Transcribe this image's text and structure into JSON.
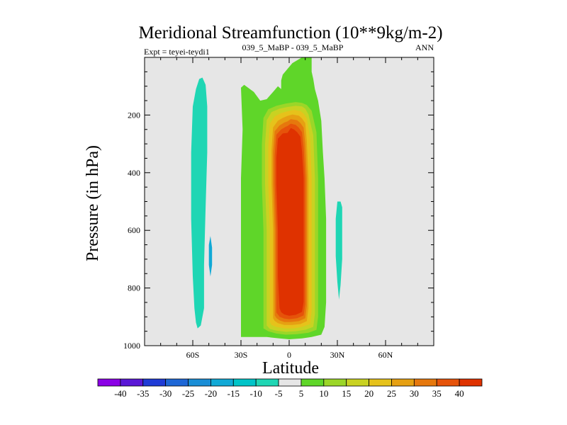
{
  "chart_data": {
    "type": "filled-contour",
    "title": "Meridional Streamfunction (10**9kg/m-2)",
    "left_subtitle": "Expt = teyei-teydi1",
    "center_subtitle": "039_5_MaBP - 039_5_MaBP",
    "right_subtitle": "ANN",
    "xlabel": "Latitude",
    "ylabel": "Pressure (in hPa)",
    "xlim": [
      -90,
      90
    ],
    "ylim": [
      1000,
      0
    ],
    "x_ticks": [
      {
        "value": -60,
        "label": "60S"
      },
      {
        "value": -30,
        "label": "30S"
      },
      {
        "value": 0,
        "label": "0"
      },
      {
        "value": 30,
        "label": "30N"
      },
      {
        "value": 60,
        "label": "60N"
      }
    ],
    "y_ticks": [
      {
        "value": 200,
        "label": "200"
      },
      {
        "value": 400,
        "label": "400"
      },
      {
        "value": 600,
        "label": "600"
      },
      {
        "value": 800,
        "label": "800"
      },
      {
        "value": 1000,
        "label": "1000"
      }
    ],
    "background_color": "#e6e6e6",
    "colorbar": {
      "labels": [
        "-40",
        "-35",
        "-30",
        "-25",
        "-20",
        "-15",
        "-10",
        "-5",
        "5",
        "10",
        "15",
        "20",
        "25",
        "30",
        "35",
        "40"
      ],
      "colors": [
        "#8b00e6",
        "#5a17d6",
        "#1f3bd6",
        "#1e67d6",
        "#1a8ed6",
        "#11a9d6",
        "#00c4c8",
        "#1fd6b4",
        "#e6e6e6",
        "#5fd629",
        "#9bd628",
        "#c9d222",
        "#e6c21b",
        "#e6a012",
        "#e6780d",
        "#e6530a",
        "#df3200"
      ]
    },
    "regions": [
      {
        "name": "southern-negative-cell",
        "color": "#1fd6b4",
        "points": [
          [
            -57,
            940
          ],
          [
            -55,
            930
          ],
          [
            -53,
            870
          ],
          [
            -53,
            720
          ],
          [
            -52,
            520
          ],
          [
            -51,
            330
          ],
          [
            -51,
            170
          ],
          [
            -52,
            95
          ],
          [
            -54,
            70
          ],
          [
            -56,
            75
          ],
          [
            -58,
            110
          ],
          [
            -60,
            170
          ],
          [
            -61,
            330
          ],
          [
            -61,
            560
          ],
          [
            -60,
            760
          ],
          [
            -59,
            870
          ],
          [
            -58,
            920
          ]
        ]
      },
      {
        "name": "southern-negative-core",
        "color": "#11a9d6",
        "points": [
          [
            -49,
            620
          ],
          [
            -48,
            660
          ],
          [
            -48,
            720
          ],
          [
            -49,
            760
          ],
          [
            -50,
            720
          ],
          [
            -50,
            650
          ]
        ]
      },
      {
        "name": "northern-negative-cell",
        "color": "#1fd6b4",
        "points": [
          [
            31,
            840
          ],
          [
            32,
            790
          ],
          [
            33,
            700
          ],
          [
            33,
            600
          ],
          [
            33,
            520
          ],
          [
            32,
            500
          ],
          [
            30,
            500
          ],
          [
            29,
            560
          ],
          [
            29,
            690
          ],
          [
            30,
            780
          ]
        ]
      },
      {
        "name": "positive-5",
        "color": "#5fd629",
        "points": [
          [
            -30,
            970
          ],
          [
            -30,
            780
          ],
          [
            -30,
            600
          ],
          [
            -30,
            420
          ],
          [
            -29,
            250
          ],
          [
            -30,
            105
          ],
          [
            -28,
            95
          ],
          [
            -22,
            120
          ],
          [
            -18,
            150
          ],
          [
            -14,
            145
          ],
          [
            -10,
            120
          ],
          [
            -7,
            100
          ],
          [
            -5,
            110
          ],
          [
            -5,
            80
          ],
          [
            -4,
            60
          ],
          [
            2,
            20
          ],
          [
            8,
            0
          ],
          [
            14,
            0
          ],
          [
            14,
            50
          ],
          [
            15,
            75
          ],
          [
            16,
            110
          ],
          [
            18,
            150
          ],
          [
            20,
            220
          ],
          [
            21,
            330
          ],
          [
            22,
            420
          ],
          [
            23,
            560
          ],
          [
            23,
            720
          ],
          [
            23,
            850
          ],
          [
            22,
            935
          ],
          [
            20,
            962
          ],
          [
            14,
            970
          ],
          [
            8,
            975
          ],
          [
            0,
            978
          ],
          [
            -6,
            975
          ],
          [
            -14,
            970
          ],
          [
            -22,
            970
          ]
        ]
      },
      {
        "name": "positive-10",
        "color": "#9bd628",
        "points": [
          [
            -16,
            940
          ],
          [
            -16,
            760
          ],
          [
            -16,
            600
          ],
          [
            -17,
            440
          ],
          [
            -17,
            300
          ],
          [
            -16,
            210
          ],
          [
            -13,
            180
          ],
          [
            -8,
            168
          ],
          [
            -2,
            160
          ],
          [
            4,
            155
          ],
          [
            8,
            158
          ],
          [
            11,
            165
          ],
          [
            14,
            185
          ],
          [
            17,
            260
          ],
          [
            18,
            420
          ],
          [
            18,
            600
          ],
          [
            18,
            780
          ],
          [
            18,
            900
          ],
          [
            17,
            945
          ],
          [
            12,
            955
          ],
          [
            5,
            960
          ],
          [
            -2,
            962
          ],
          [
            -8,
            958
          ],
          [
            -13,
            950
          ]
        ]
      },
      {
        "name": "positive-15",
        "color": "#c9d222",
        "points": [
          [
            -14,
            930
          ],
          [
            -14,
            760
          ],
          [
            -14,
            600
          ],
          [
            -15,
            440
          ],
          [
            -15,
            300
          ],
          [
            -14,
            218
          ],
          [
            -11,
            190
          ],
          [
            -6,
            178
          ],
          [
            -1,
            172
          ],
          [
            4,
            168
          ],
          [
            8,
            170
          ],
          [
            10,
            178
          ],
          [
            12,
            198
          ],
          [
            15,
            270
          ],
          [
            16,
            420
          ],
          [
            16,
            600
          ],
          [
            16,
            780
          ],
          [
            16,
            890
          ],
          [
            15,
            935
          ],
          [
            10,
            945
          ],
          [
            4,
            950
          ],
          [
            -2,
            952
          ],
          [
            -8,
            948
          ],
          [
            -12,
            942
          ]
        ]
      },
      {
        "name": "positive-20",
        "color": "#e6c21b",
        "points": [
          [
            -12,
            918
          ],
          [
            -12,
            760
          ],
          [
            -12,
            600
          ],
          [
            -13,
            440
          ],
          [
            -13,
            310
          ],
          [
            -12,
            230
          ],
          [
            -9,
            205
          ],
          [
            -5,
            193
          ],
          [
            -1,
            187
          ],
          [
            3,
            182
          ],
          [
            7,
            186
          ],
          [
            9,
            195
          ],
          [
            11,
            212
          ],
          [
            13,
            280
          ],
          [
            14,
            420
          ],
          [
            14,
            600
          ],
          [
            14,
            770
          ],
          [
            14,
            880
          ],
          [
            13,
            925
          ],
          [
            8,
            935
          ],
          [
            3,
            940
          ],
          [
            -3,
            940
          ],
          [
            -8,
            935
          ],
          [
            -11,
            928
          ]
        ]
      },
      {
        "name": "positive-25",
        "color": "#e6a012",
        "points": [
          [
            -10,
            905
          ],
          [
            -10,
            760
          ],
          [
            -10,
            600
          ],
          [
            -11,
            440
          ],
          [
            -11,
            320
          ],
          [
            -10,
            243
          ],
          [
            -7,
            220
          ],
          [
            -4,
            210
          ],
          [
            -1,
            203
          ],
          [
            2,
            198
          ],
          [
            6,
            202
          ],
          [
            8,
            212
          ],
          [
            10,
            228
          ],
          [
            11,
            290
          ],
          [
            12,
            420
          ],
          [
            12,
            600
          ],
          [
            12,
            760
          ],
          [
            12,
            870
          ],
          [
            11,
            915
          ],
          [
            7,
            925
          ],
          [
            2,
            928
          ],
          [
            -3,
            928
          ],
          [
            -7,
            922
          ],
          [
            -9,
            914
          ]
        ]
      },
      {
        "name": "positive-30",
        "color": "#e6780d",
        "points": [
          [
            -9,
            895
          ],
          [
            -9,
            760
          ],
          [
            -9,
            600
          ],
          [
            -10,
            440
          ],
          [
            -10,
            330
          ],
          [
            -9,
            256
          ],
          [
            -6,
            236
          ],
          [
            -3,
            226
          ],
          [
            -1,
            222
          ],
          [
            1,
            214
          ],
          [
            5,
            218
          ],
          [
            7,
            228
          ],
          [
            9,
            244
          ],
          [
            10,
            300
          ],
          [
            11,
            420
          ],
          [
            11,
            600
          ],
          [
            11,
            760
          ],
          [
            11,
            862
          ],
          [
            10,
            905
          ],
          [
            6,
            915
          ],
          [
            1,
            918
          ],
          [
            -3,
            918
          ],
          [
            -6,
            912
          ],
          [
            -8,
            904
          ]
        ]
      },
      {
        "name": "positive-35",
        "color": "#e6530a",
        "points": [
          [
            -8,
            885
          ],
          [
            -8,
            760
          ],
          [
            -8,
            600
          ],
          [
            -9,
            440
          ],
          [
            -9,
            340
          ],
          [
            -8,
            268
          ],
          [
            -5,
            250
          ],
          [
            -2,
            240
          ],
          [
            -1,
            238
          ],
          [
            1,
            230
          ],
          [
            4,
            234
          ],
          [
            6,
            244
          ],
          [
            8,
            260
          ],
          [
            9,
            312
          ],
          [
            10,
            420
          ],
          [
            10,
            600
          ],
          [
            10,
            760
          ],
          [
            10,
            855
          ],
          [
            9,
            895
          ],
          [
            5,
            905
          ],
          [
            0,
            908
          ],
          [
            -3,
            906
          ],
          [
            -6,
            900
          ],
          [
            -7,
            892
          ]
        ]
      },
      {
        "name": "positive-40",
        "color": "#df3200",
        "points": [
          [
            -6,
            870
          ],
          [
            -7,
            760
          ],
          [
            -7,
            600
          ],
          [
            -8,
            440
          ],
          [
            -8,
            350
          ],
          [
            -7,
            282
          ],
          [
            -4,
            264
          ],
          [
            -1,
            262
          ],
          [
            1,
            245
          ],
          [
            3,
            250
          ],
          [
            5,
            260
          ],
          [
            7,
            275
          ],
          [
            8,
            325
          ],
          [
            9,
            420
          ],
          [
            9,
            600
          ],
          [
            9,
            760
          ],
          [
            9,
            848
          ],
          [
            8,
            883
          ],
          [
            4,
            893
          ],
          [
            0,
            896
          ],
          [
            -3,
            892
          ],
          [
            -5,
            884
          ]
        ]
      }
    ]
  }
}
